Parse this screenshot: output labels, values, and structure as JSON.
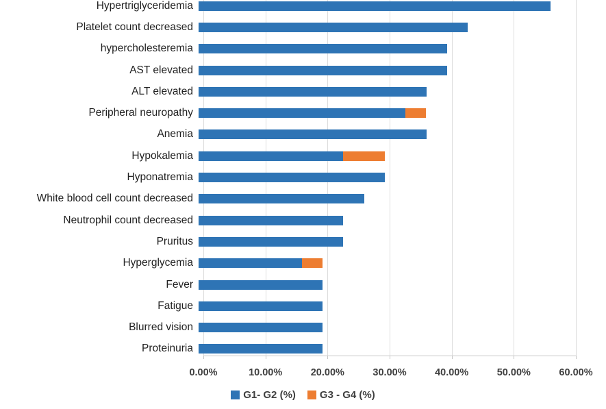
{
  "chart_data": {
    "type": "bar",
    "orientation": "horizontal",
    "stacked": true,
    "grid": true,
    "legend_position": "bottom",
    "categories": [
      "Hypertriglyceridemia",
      "Platelet count decreased",
      "hypercholesteremia",
      "AST elevated",
      "ALT elevated",
      "Peripheral neuropathy",
      "Anemia",
      "Hypokalemia",
      "Hyponatremia",
      "White blood cell count decreased",
      "Neutrophil count decreased",
      "Pruritus",
      "Hyperglycemia",
      "Fever",
      "Fatigue",
      "Blurred vision",
      "Proteinuria"
    ],
    "series": [
      {
        "name": "G1- G2 (%)",
        "color": "#2E74B5",
        "values": [
          56.7,
          43.3,
          40,
          40,
          36.7,
          33.3,
          36.7,
          23.3,
          30,
          26.7,
          23.3,
          23.3,
          16.7,
          20,
          20,
          20,
          20
        ]
      },
      {
        "name": "G3 - G4 (%)",
        "color": "#ED7D31",
        "values": [
          0,
          0,
          0,
          0,
          0,
          3.3,
          0,
          6.7,
          0,
          0,
          0,
          0,
          3.3,
          0,
          0,
          0,
          0
        ]
      }
    ],
    "x_axis": {
      "min": 0,
      "max": 60,
      "tick_labels": [
        "0.00%",
        "10.00%",
        "20.00%",
        "30.00%",
        "40.00%",
        "50.00%",
        "60.00%"
      ]
    },
    "title": "",
    "xlabel": "",
    "ylabel": ""
  }
}
